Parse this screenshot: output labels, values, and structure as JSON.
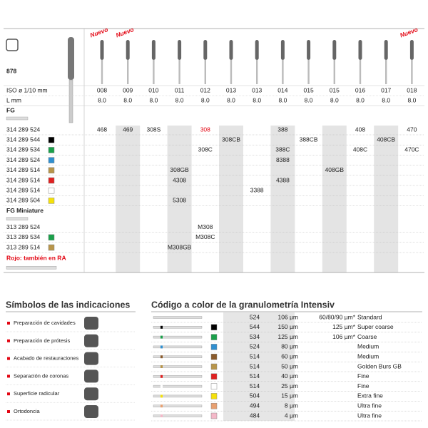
{
  "header": {
    "product": "878",
    "nuevo": [
      "Nuevo",
      "Nuevo",
      null,
      null,
      null,
      null,
      null,
      null,
      null,
      null,
      null,
      null,
      "Nuevo"
    ]
  },
  "table": {
    "iso_label": "ISO ø 1/10 mm",
    "iso": [
      "008",
      "009",
      "010",
      "011",
      "012",
      "013",
      "013",
      "014",
      "015",
      "015",
      "016",
      "017",
      "018"
    ],
    "l_label": "L mm",
    "l": [
      "8.0",
      "8.0",
      "8.0",
      "8.0",
      "8.0",
      "8.0",
      "8.0",
      "8.0",
      "8.0",
      "8.0",
      "8.0",
      "8.0",
      "8.0"
    ],
    "sections": [
      {
        "title": "FG",
        "rows": [
          {
            "code": "314 289 524",
            "color": null,
            "cells": [
              "468",
              "469",
              "308S",
              null,
              {
                "text": "308",
                "color": "#e30613"
              },
              null,
              null,
              "388",
              null,
              null,
              "408",
              null,
              "470"
            ]
          },
          {
            "code": "314 289 544",
            "color": "#000000",
            "cells": [
              null,
              null,
              null,
              null,
              null,
              "308CB",
              null,
              null,
              "388CB",
              null,
              null,
              "408CB",
              null
            ]
          },
          {
            "code": "314 289 534",
            "color": "#1aa04a",
            "cells": [
              null,
              null,
              null,
              null,
              "308C",
              null,
              null,
              "388C",
              null,
              null,
              "408C",
              null,
              "470C"
            ]
          },
          {
            "code": "314 289 524",
            "color": "#2f8fd0",
            "cells": [
              null,
              null,
              null,
              null,
              null,
              null,
              null,
              "8388",
              null,
              null,
              null,
              null,
              null
            ]
          },
          {
            "code": "314 289 514",
            "color": "#b8954a",
            "cells": [
              null,
              null,
              null,
              "308GB",
              null,
              null,
              null,
              null,
              null,
              "408GB",
              null,
              null,
              null
            ]
          },
          {
            "code": "314 289 514",
            "color": "#e02020",
            "cells": [
              null,
              null,
              null,
              "4308",
              null,
              null,
              null,
              "4388",
              null,
              null,
              null,
              null,
              null
            ]
          },
          {
            "code": "314 289 514",
            "color": "#ffffff",
            "cells": [
              null,
              null,
              null,
              null,
              null,
              null,
              "3388",
              null,
              null,
              null,
              null,
              null,
              null
            ]
          },
          {
            "code": "314 289 504",
            "color": "#f5e10a",
            "cells": [
              null,
              null,
              null,
              "5308",
              null,
              null,
              null,
              null,
              null,
              null,
              null,
              null,
              null
            ]
          }
        ]
      },
      {
        "title": "FG Miniature",
        "rows": [
          {
            "code": "313 289 524",
            "color": null,
            "cells": [
              null,
              null,
              null,
              null,
              "M308",
              null,
              null,
              null,
              null,
              null,
              null,
              null,
              null
            ]
          },
          {
            "code": "313 289 534",
            "color": "#1aa04a",
            "cells": [
              null,
              null,
              null,
              null,
              "M308C",
              null,
              null,
              null,
              null,
              null,
              null,
              null,
              null
            ]
          },
          {
            "code": "313 289 514",
            "color": "#b8954a",
            "cells": [
              null,
              null,
              null,
              "M308GB",
              null,
              null,
              null,
              null,
              null,
              null,
              null,
              null,
              null
            ]
          }
        ]
      }
    ],
    "footnote": "Rojo: también en RA"
  },
  "indications": {
    "title": "Símbolos de las indicaciones",
    "items": [
      "Preparación de cavidades",
      "Preparación de prótesis",
      "Acabado de restauraciones",
      "Separación de coronas",
      "Superficie radicular",
      "Ortodoncia"
    ]
  },
  "grit": {
    "title": "Código a color de la granulometría Intensiv",
    "rows": [
      {
        "code": "524",
        "size": "106 µm",
        "note": "60/80/90 µm*",
        "grade": "Standard",
        "color": null
      },
      {
        "code": "544",
        "size": "150 µm",
        "note": "125 µm*",
        "grade": "Super coarse",
        "color": "#000000"
      },
      {
        "code": "534",
        "size": "125 µm",
        "note": "106 µm*",
        "grade": "Coarse",
        "color": "#1aa04a"
      },
      {
        "code": "524",
        "size": "80 µm",
        "note": null,
        "grade": "Medium",
        "color": "#2f8fd0"
      },
      {
        "code": "514",
        "size": "60 µm",
        "note": null,
        "grade": "Medium",
        "color": "#8a5a2b"
      },
      {
        "code": "514",
        "size": "50 µm",
        "note": null,
        "grade": "Golden Burs GB",
        "color": "#b8954a"
      },
      {
        "code": "514",
        "size": "40 µm",
        "note": null,
        "grade": "Fine",
        "color": "#e02020"
      },
      {
        "code": "514",
        "size": "25 µm",
        "note": null,
        "grade": "Fine",
        "color": "#ffffff"
      },
      {
        "code": "504",
        "size": "15 µm",
        "note": null,
        "grade": "Extra fine",
        "color": "#f5e10a"
      },
      {
        "code": "494",
        "size": "8 µm",
        "note": null,
        "grade": "Ultra fine",
        "color": "#e8a070"
      },
      {
        "code": "484",
        "size": "4 µm",
        "note": null,
        "grade": "Ultra fine",
        "color": "#f4b8c8"
      }
    ]
  }
}
